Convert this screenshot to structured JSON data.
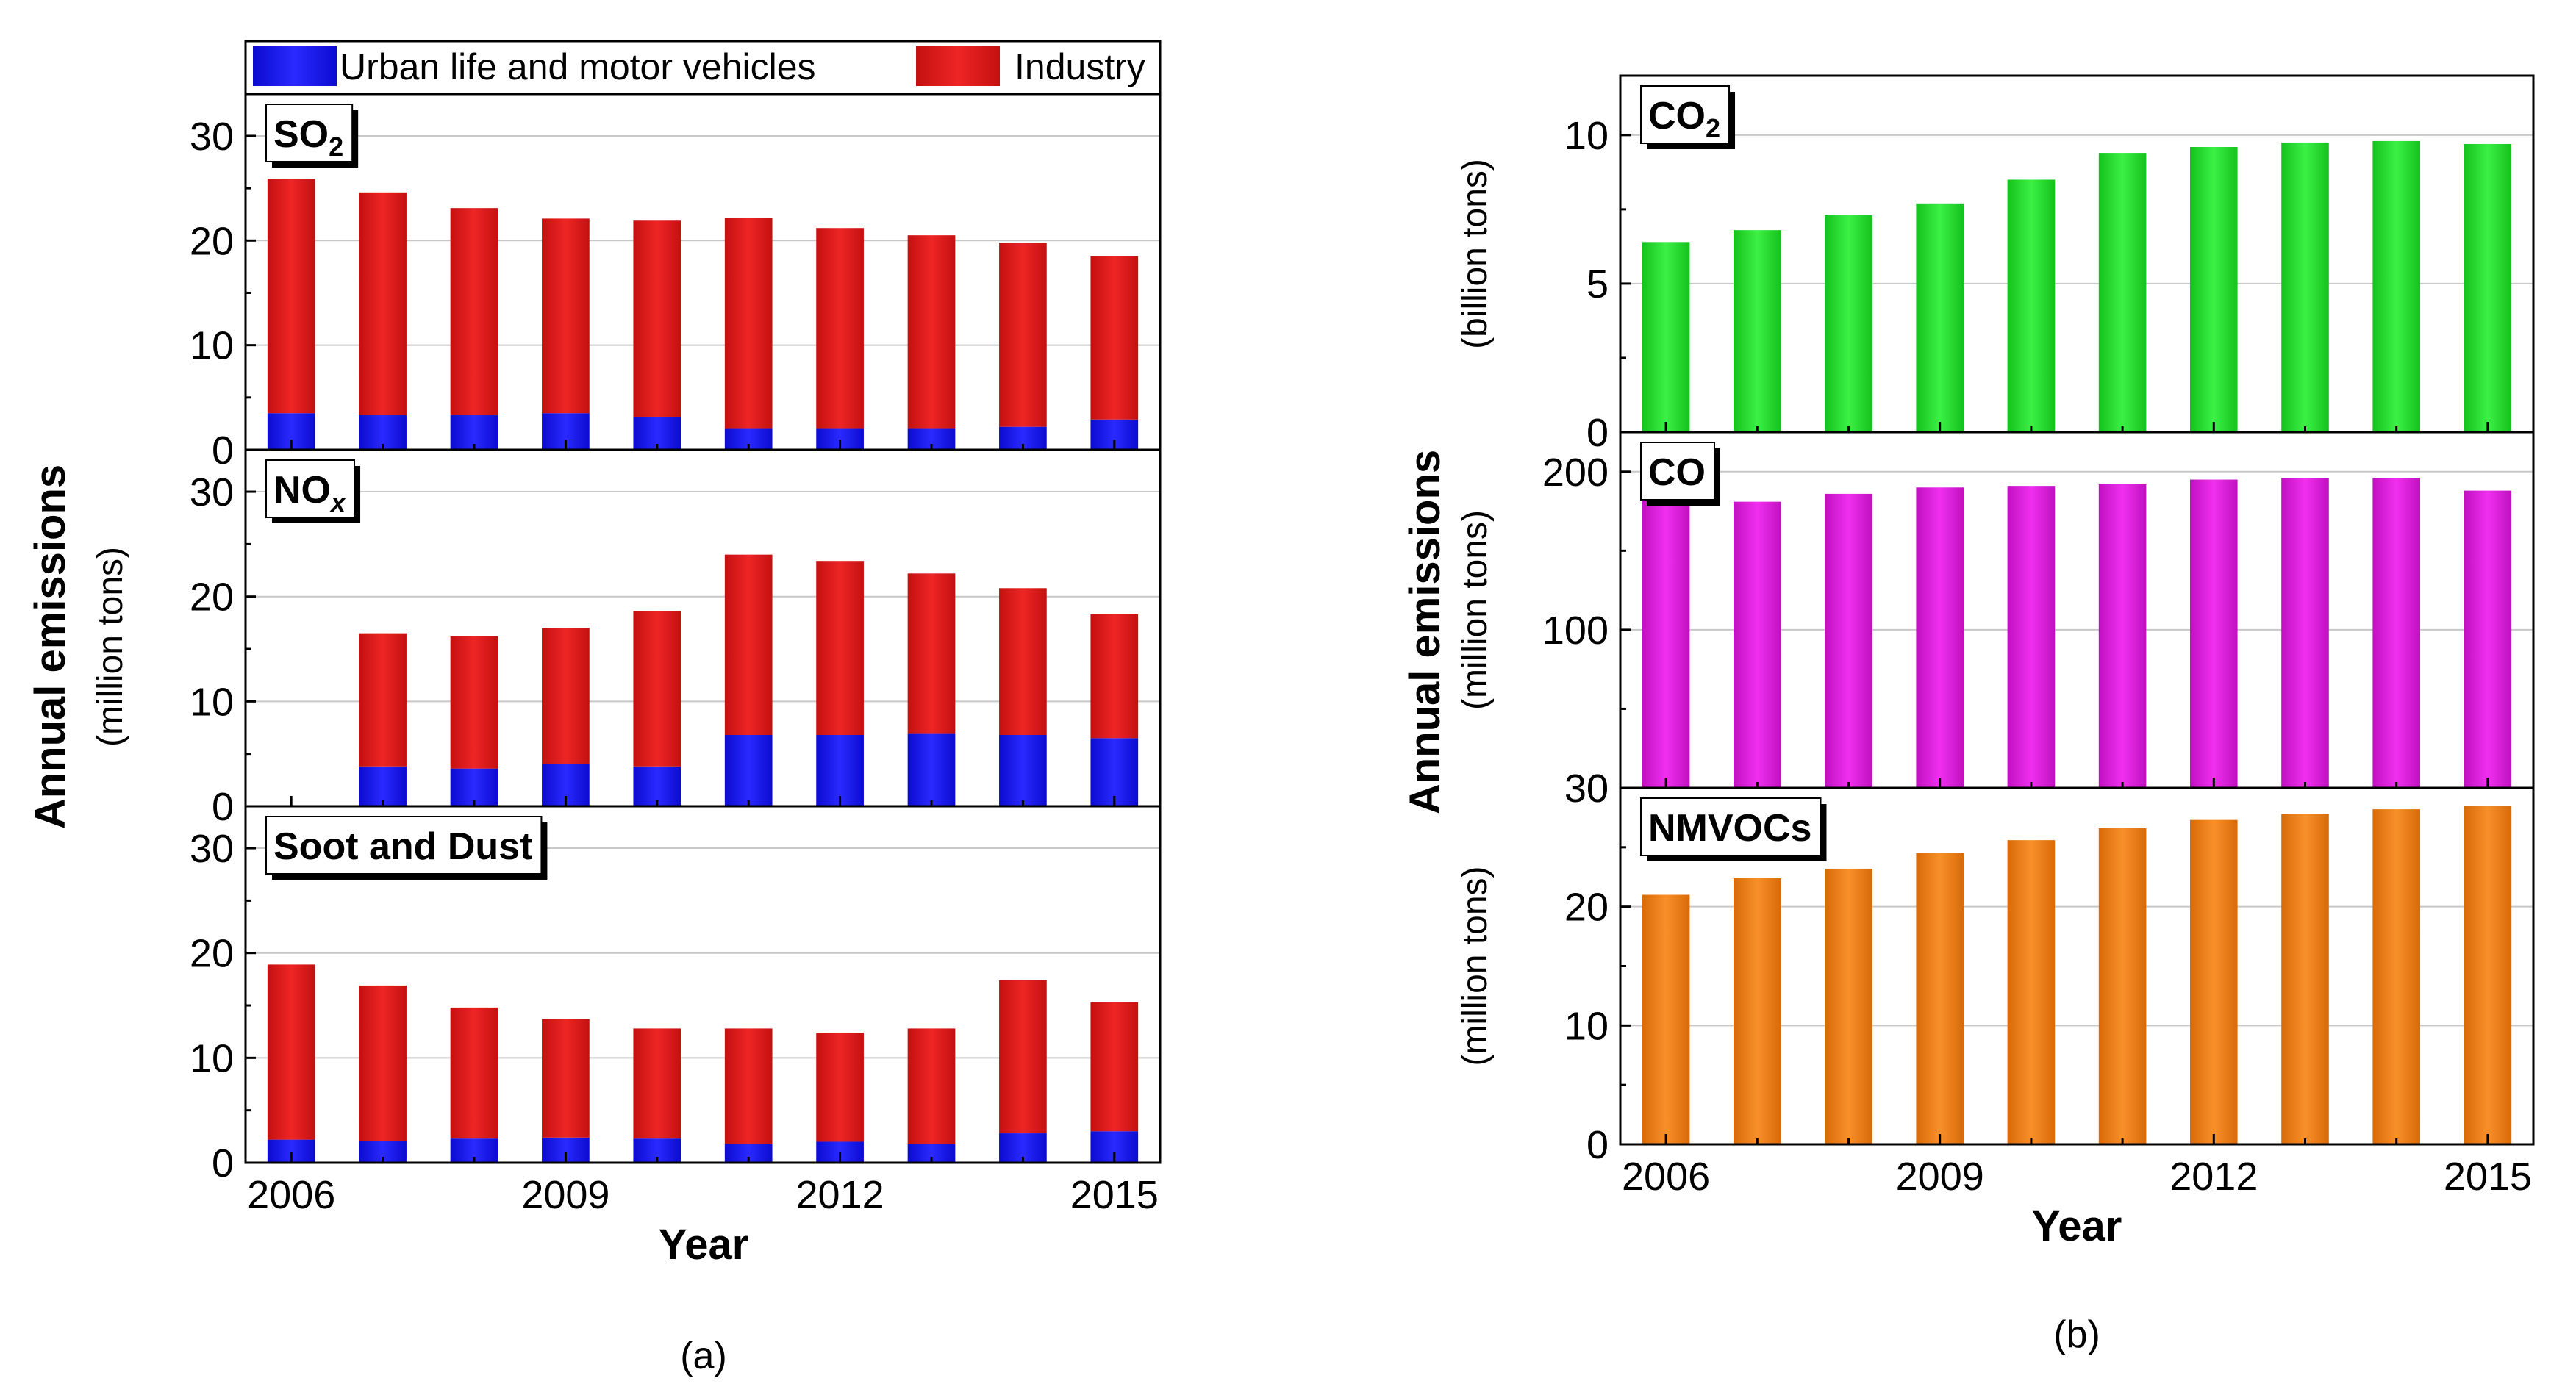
{
  "colors": {
    "urban": "#1a1aff",
    "industry": "#e21b1b",
    "co2": "#21e02a",
    "co": "#e020e0",
    "nmvocs": "#f07d12"
  },
  "chart_data": [
    {
      "type": "bar",
      "panel": "a",
      "stacked": true,
      "caption": "(a)",
      "xlabel": "Year",
      "ylabel": "Annual emissions",
      "yunit": "(million tons)",
      "x_ticks": [
        "2006",
        "2009",
        "2012",
        "2015"
      ],
      "categories": [
        "2006",
        "2007",
        "2008",
        "2009",
        "2010",
        "2011",
        "2012",
        "2013",
        "2014",
        "2015"
      ],
      "legend": {
        "position": "top",
        "entries": [
          {
            "name": "Urban life and motor vehicles",
            "color_key": "urban"
          },
          {
            "name": "Industry",
            "color_key": "industry"
          }
        ]
      },
      "subplots": [
        {
          "title": "SO",
          "title_sub": "2",
          "ylim": [
            0,
            34
          ],
          "y_ticks": [
            "0",
            "10",
            "20",
            "30"
          ],
          "series": [
            {
              "name": "Urban life and motor vehicles",
              "values": [
                3.5,
                3.3,
                3.3,
                3.5,
                3.1,
                2.0,
                2.0,
                2.0,
                2.2,
                2.9
              ]
            },
            {
              "name": "Industry",
              "values": [
                22.4,
                21.3,
                19.8,
                18.6,
                18.8,
                20.2,
                19.2,
                18.5,
                17.6,
                15.6
              ]
            }
          ]
        },
        {
          "title": "NO",
          "title_sub": "x",
          "ylim": [
            0,
            34
          ],
          "y_ticks": [
            "0",
            "10",
            "20",
            "30"
          ],
          "series": [
            {
              "name": "Urban life and motor vehicles",
              "values": [
                null,
                3.8,
                3.6,
                4.0,
                3.8,
                6.8,
                6.8,
                6.9,
                6.8,
                6.5
              ]
            },
            {
              "name": "Industry",
              "values": [
                null,
                12.7,
                12.6,
                13.0,
                14.8,
                17.2,
                16.6,
                15.3,
                14.0,
                11.8
              ]
            }
          ]
        },
        {
          "title": "Soot and Dust",
          "title_sub": "",
          "ylim": [
            0,
            34
          ],
          "y_ticks": [
            "0",
            "10",
            "20",
            "30"
          ],
          "series": [
            {
              "name": "Urban life and motor vehicles",
              "values": [
                2.2,
                2.1,
                2.3,
                2.4,
                2.3,
                1.8,
                2.0,
                1.8,
                2.8,
                3.0
              ]
            },
            {
              "name": "Industry",
              "values": [
                16.7,
                14.8,
                12.5,
                11.3,
                10.5,
                11.0,
                10.4,
                11.0,
                14.6,
                12.3
              ]
            }
          ]
        }
      ]
    },
    {
      "type": "bar",
      "panel": "b",
      "stacked": false,
      "caption": "(b)",
      "xlabel": "Year",
      "ylabel": "Annual emissions",
      "x_ticks": [
        "2006",
        "2009",
        "2012",
        "2015"
      ],
      "categories": [
        "2006",
        "2007",
        "2008",
        "2009",
        "2010",
        "2011",
        "2012",
        "2013",
        "2014",
        "2015"
      ],
      "subplots": [
        {
          "title": "CO",
          "title_sub": "2",
          "yunit": "(billion tons)",
          "ylim": [
            0,
            12
          ],
          "y_ticks": [
            "0",
            "5",
            "10"
          ],
          "color_key": "co2",
          "series": [
            {
              "name": "CO2",
              "values": [
                6.4,
                6.8,
                7.3,
                7.7,
                8.5,
                9.4,
                9.6,
                9.75,
                9.8,
                9.7
              ]
            }
          ]
        },
        {
          "title": "CO",
          "title_sub": "",
          "yunit": "(million tons)",
          "ylim": [
            0,
            225
          ],
          "y_ticks": [
            "0",
            "100",
            "200"
          ],
          "color_key": "co",
          "series": [
            {
              "name": "CO",
              "values": [
                185,
                181,
                186,
                190,
                191,
                192,
                195,
                196,
                196,
                188
              ]
            }
          ]
        },
        {
          "title": "NMVOCs",
          "title_sub": "",
          "yunit": "(million tons)",
          "ylim": [
            0,
            30
          ],
          "y_ticks": [
            "0",
            "10",
            "20",
            "30"
          ],
          "color_key": "nmvocs",
          "series": [
            {
              "name": "NMVOCs",
              "values": [
                21.0,
                22.4,
                23.2,
                24.5,
                25.6,
                26.6,
                27.3,
                27.8,
                28.2,
                28.5
              ]
            }
          ]
        }
      ]
    }
  ]
}
